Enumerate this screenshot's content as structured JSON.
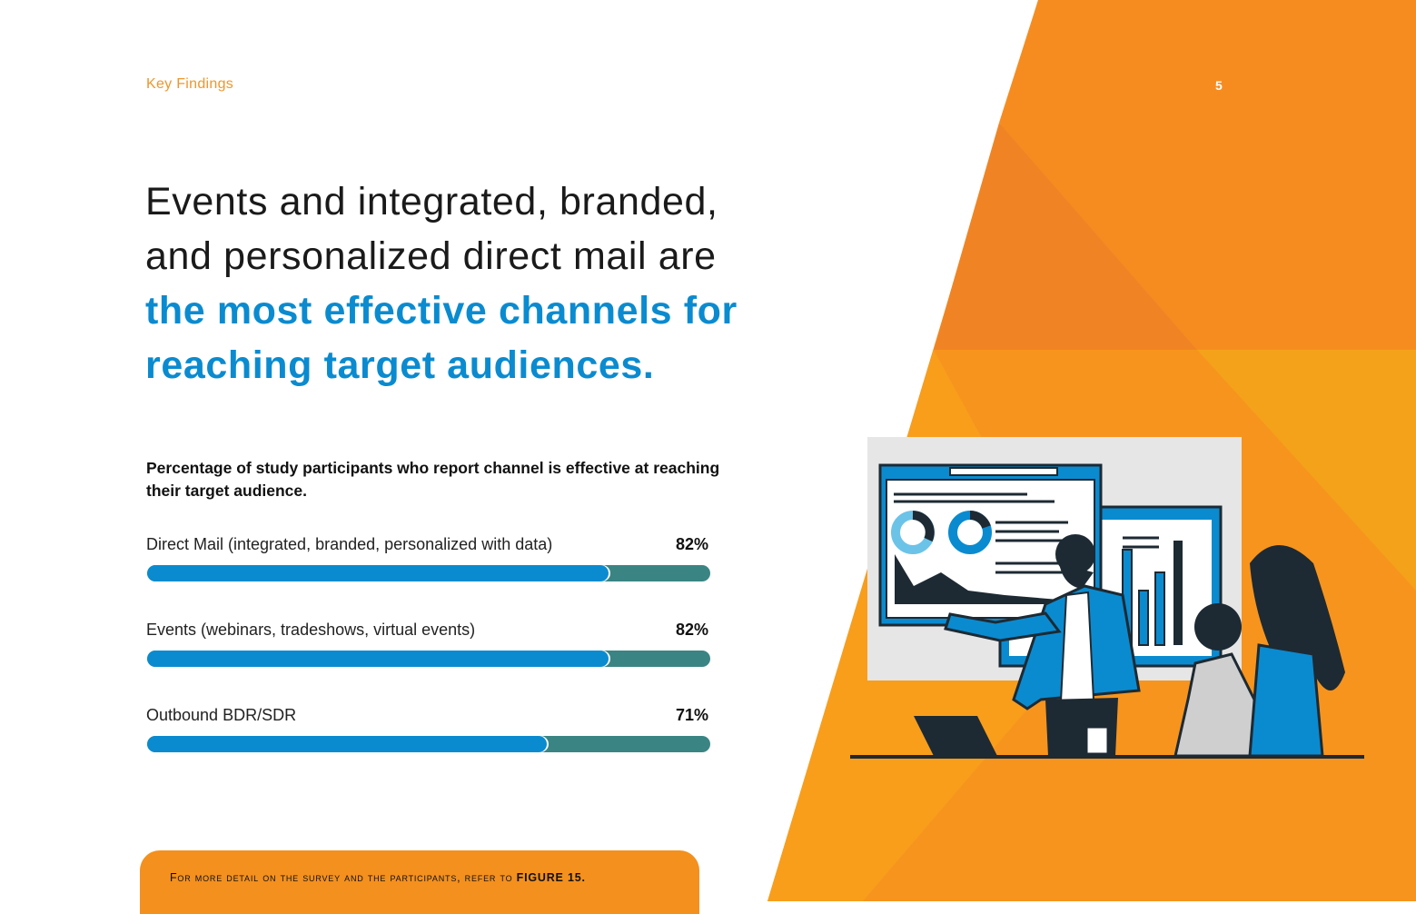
{
  "header": {
    "section": "Key Findings",
    "page_number": "5"
  },
  "headline": {
    "line1": "Events and integrated, branded,",
    "line2": "and personalized direct mail are",
    "highlight1": "the most effective channels for",
    "highlight2": "reaching target audiences."
  },
  "chart_data": {
    "type": "bar",
    "orientation": "horizontal",
    "title": "Percentage of study participants who report channel is effective at reaching their target audience.",
    "categories": [
      "Direct Mail (integrated, branded, personalized with data)",
      "Events (webinars, tradeshows, virtual events)",
      "Outbound BDR/SDR"
    ],
    "values": [
      82,
      82,
      71
    ],
    "value_labels": [
      "82%",
      "82%",
      "71%"
    ],
    "xlim": [
      0,
      100
    ],
    "colors": {
      "fill": "#0a8bd0",
      "track": "#3a8583"
    }
  },
  "footer": {
    "text": "For more detail on the survey and the participants, refer to",
    "link": "FIGURE 15."
  },
  "colors": {
    "accent_orange": "#f4901e",
    "accent_blue": "#0a8bd0"
  }
}
